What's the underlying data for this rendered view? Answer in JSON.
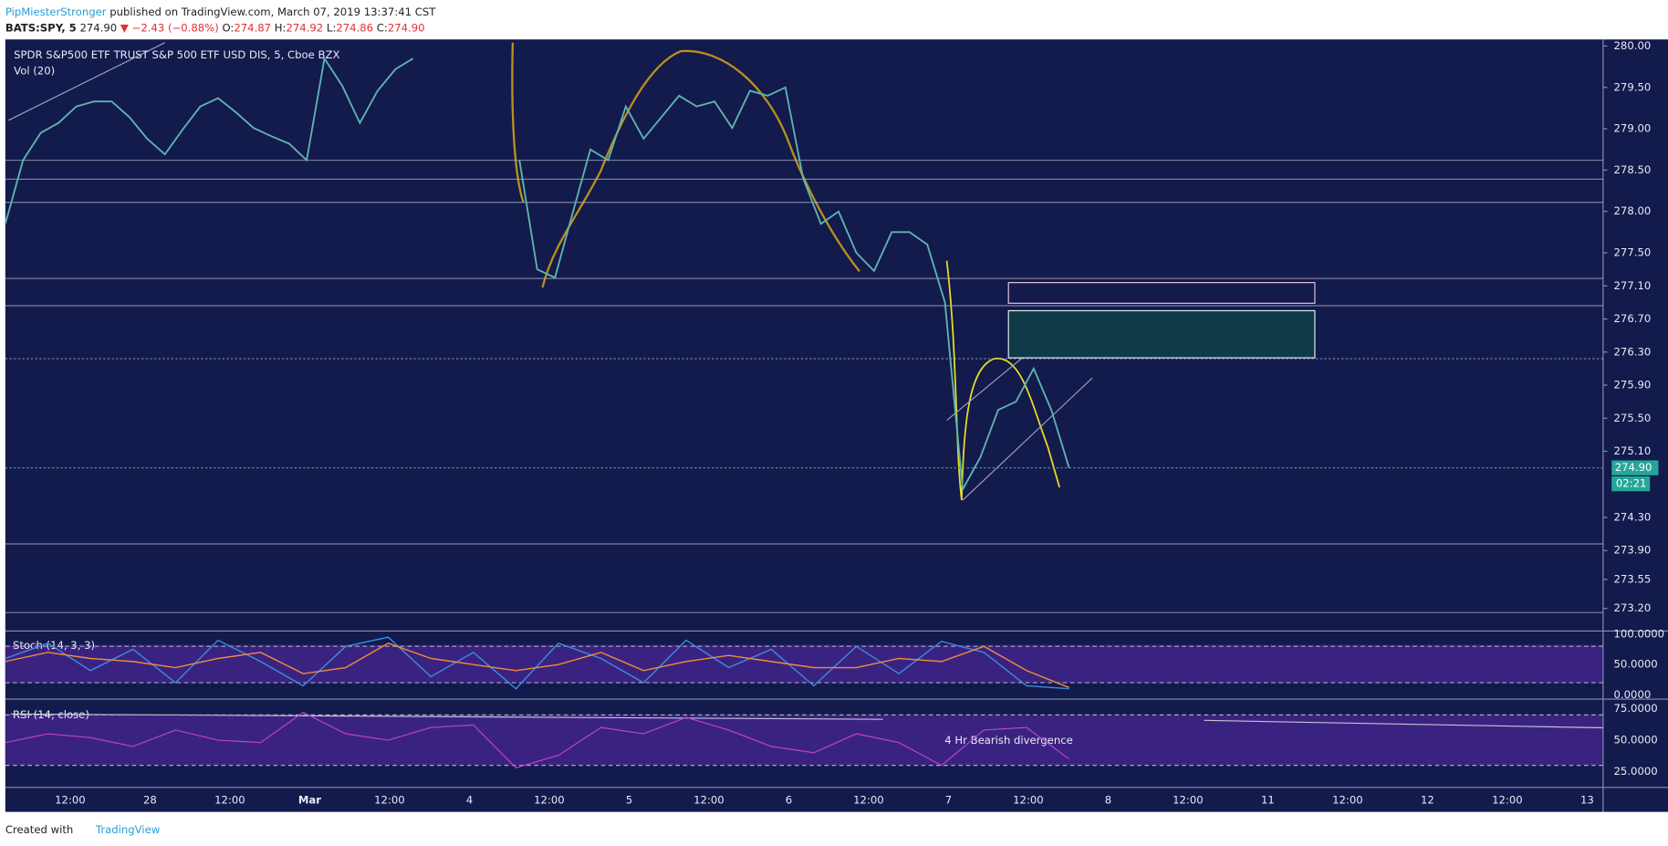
{
  "header": {
    "author": "PipMiesterStronger",
    "published": "published on TradingView.com, March 07, 2019 13:37:41 CST",
    "symbol": "BATS:SPY, 5",
    "last": "274.90",
    "change": "▼ −2.43 (−0.88%)",
    "o_label": "O:",
    "o": "274.87",
    "h_label": "H:",
    "h": "274.92",
    "l_label": "L:",
    "l": "274.86",
    "c_label": "C:",
    "c": "274.90"
  },
  "footer": {
    "created": "Created with",
    "brand": "TradingView"
  },
  "chart_data": {
    "type": "line",
    "title": "SPDR S&P500 ETF TRUST S&P 500 ETF USD DIS, 5, Cboe BZX",
    "volume_label": "Vol (20)",
    "series": [
      {
        "name": "SPY",
        "color": "#5fb3ad",
        "values": [
          277.85,
          278.62,
          278.95,
          279.07,
          279.27,
          279.33,
          279.33,
          279.14,
          278.88,
          278.69,
          278.99,
          279.27,
          279.37,
          279.2,
          279.01,
          278.91,
          278.82,
          278.62,
          279.85,
          279.52,
          279.07,
          279.46,
          279.72,
          279.85,
          null,
          null,
          null,
          null,
          null,
          278.62,
          277.3,
          277.2,
          277.98,
          278.75,
          278.62,
          279.27,
          278.88,
          279.14,
          279.4,
          279.27,
          279.33,
          279.01,
          279.46,
          279.4,
          279.5,
          278.4,
          277.85,
          278.0,
          277.5,
          277.28,
          277.75,
          277.75,
          277.6,
          276.9,
          274.64,
          275.03,
          275.6,
          275.7,
          276.1,
          275.6,
          274.9
        ]
      }
    ],
    "ylim": [
      272.94,
      280.08
    ],
    "yticks": [
      {
        "value": 280,
        "label": "280.00"
      },
      {
        "value": 279.5,
        "label": "279.50"
      },
      {
        "value": 279,
        "label": "279.00"
      },
      {
        "value": 278.5,
        "label": "278.50"
      },
      {
        "value": 278,
        "label": "278.00"
      },
      {
        "value": 277.5,
        "label": "277.50"
      },
      {
        "value": 277.1,
        "label": "277.10"
      },
      {
        "value": 276.7,
        "label": "276.70"
      },
      {
        "value": 276.3,
        "label": "276.30"
      },
      {
        "value": 275.9,
        "label": "275.90"
      },
      {
        "value": 275.5,
        "label": "275.50"
      },
      {
        "value": 275.1,
        "label": "275.10"
      },
      {
        "value": 274.3,
        "label": "274.30"
      },
      {
        "value": 273.9,
        "label": "273.90"
      },
      {
        "value": 273.55,
        "label": "273.55"
      },
      {
        "value": 273.2,
        "label": "273.20"
      }
    ],
    "last_price": {
      "value": 274.9,
      "label": "274.90"
    },
    "countdown": "02:21",
    "horizontal_lines": [
      278.62,
      278.39,
      278.11,
      277.19,
      276.86,
      276.22,
      273.98,
      273.15
    ],
    "zones": [
      {
        "top": 277.14,
        "bottom": 276.89,
        "color": "#e8c8e0"
      },
      {
        "top": 276.8,
        "bottom": 276.23,
        "color": "#e8f0ee"
      }
    ],
    "xticks": [
      "12:00",
      "28",
      "12:00",
      "Mar",
      "12:00",
      "4",
      "12:00",
      "5",
      "12:00",
      "6",
      "12:00",
      "7",
      "12:00",
      "8",
      "12:00",
      "11",
      "12:00",
      "12",
      "12:00",
      "13"
    ],
    "annotation": "4 Hr Bearish divergence",
    "stoch": {
      "label": "Stoch (14, 3, 3)",
      "ylim": [
        -7,
        103.5
      ],
      "yticks": [
        {
          "value": 100,
          "label": "100.0000"
        },
        {
          "value": 50,
          "label": "50.0000"
        },
        {
          "value": 0,
          "label": "0.0000"
        }
      ],
      "bands": [
        80,
        20
      ],
      "series": [
        {
          "name": "%K",
          "color": "#3d8be0",
          "values": [
            60,
            85,
            40,
            75,
            20,
            90,
            55,
            15,
            80,
            95,
            30,
            70,
            10,
            85,
            60,
            20,
            90,
            45,
            75,
            15,
            80,
            35,
            88,
            70,
            15,
            10
          ]
        },
        {
          "name": "%D",
          "color": "#f08c3c",
          "values": [
            55,
            70,
            60,
            55,
            45,
            60,
            70,
            35,
            45,
            85,
            60,
            50,
            40,
            50,
            70,
            40,
            55,
            65,
            55,
            45,
            45,
            60,
            55,
            80,
            40,
            12
          ]
        }
      ]
    },
    "rsi": {
      "label": "RSI (14, close)",
      "ylim": [
        12.5,
        81.7
      ],
      "yticks": [
        {
          "value": 75,
          "label": "75.0000"
        },
        {
          "value": 50,
          "label": "50.0000"
        },
        {
          "value": 25,
          "label": "25.0000"
        }
      ],
      "bands": [
        70,
        30
      ],
      "color": "#c040d0",
      "values": [
        48,
        55,
        52,
        45,
        58,
        50,
        48,
        72,
        55,
        50,
        60,
        62,
        28,
        38,
        60,
        55,
        68,
        58,
        45,
        40,
        55,
        48,
        30,
        58,
        60,
        35
      ]
    }
  }
}
